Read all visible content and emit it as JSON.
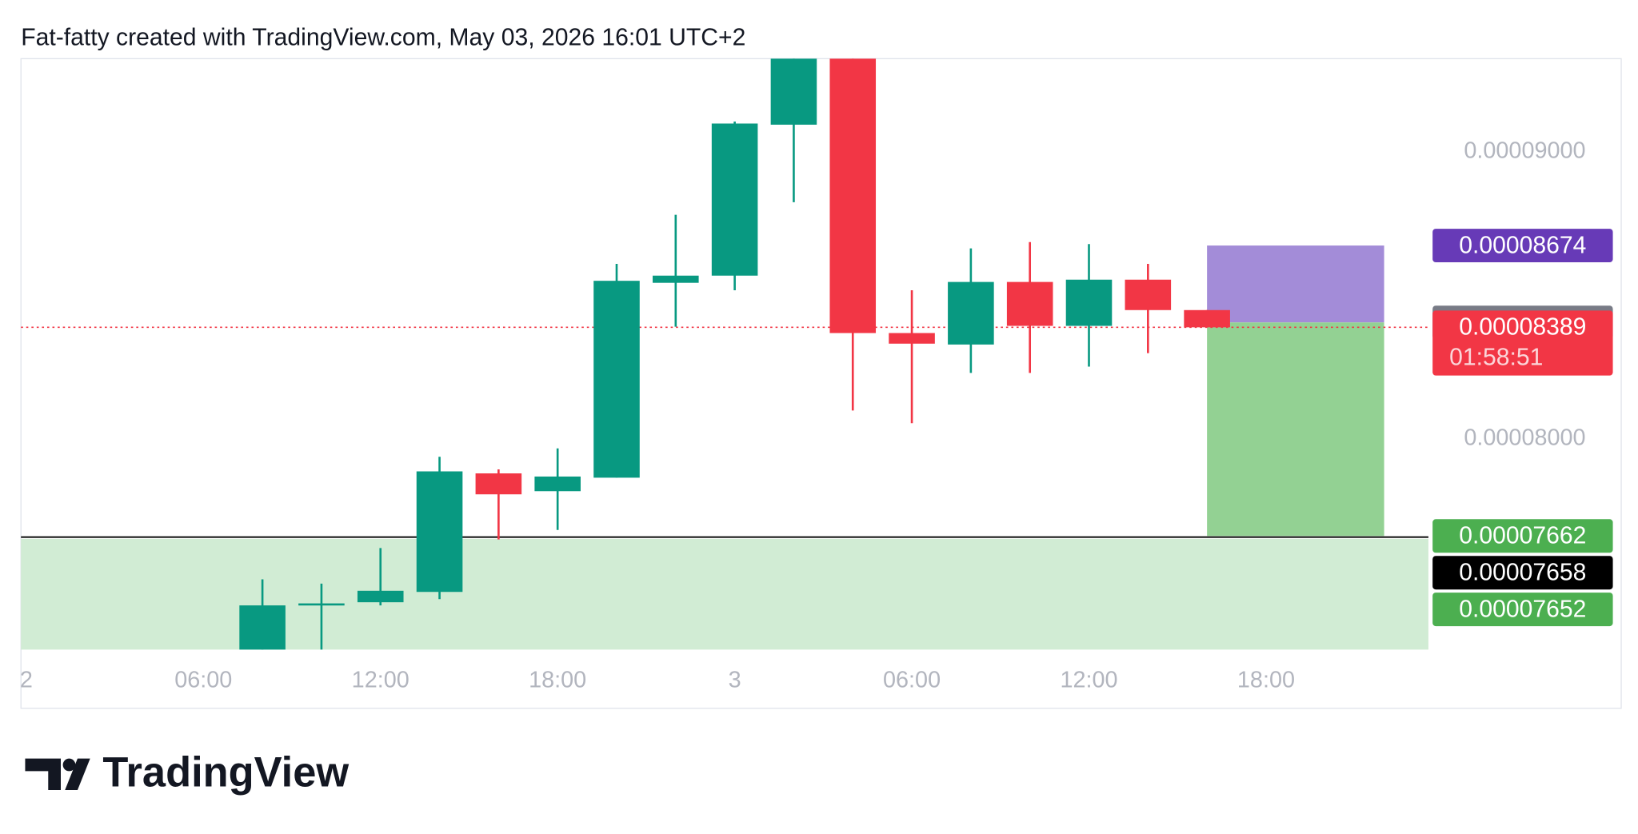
{
  "chart_data": {
    "type": "candlestick",
    "title": "Fat-fatty created with TradingView.com, May 03, 2026 16:01 UTC+2",
    "brand": "TradingView",
    "x": [
      8,
      10,
      12,
      14,
      16,
      18,
      20,
      22,
      24,
      26,
      28,
      30,
      32,
      34,
      36,
      38,
      40
    ],
    "open": [
      7.266e-05,
      7.42e-05,
      7.431e-05,
      7.467e-05,
      7.88e-05,
      7.818e-05,
      7.865e-05,
      8.544e-05,
      8.569e-05,
      9.095e-05,
      9.325e-05,
      8.369e-05,
      8.329e-05,
      8.547e-05,
      8.394e-05,
      8.555e-05,
      8.449e-05
    ],
    "high": [
      7.511e-05,
      7.496e-05,
      7.62e-05,
      7.938e-05,
      7.894e-05,
      7.967e-05,
      8.61e-05,
      8.781e-05,
      9.106e-05,
      9.325e-05,
      9.325e-05,
      8.518e-05,
      8.664e-05,
      8.686e-05,
      8.679e-05,
      8.61e-05,
      8.449e-05
    ],
    "low": [
      7.266e-05,
      7.266e-05,
      7.42e-05,
      7.442e-05,
      7.65e-05,
      7.683e-05,
      7.865e-05,
      8.391e-05,
      8.518e-05,
      8.825e-05,
      8.099e-05,
      8.055e-05,
      8.23e-05,
      8.23e-05,
      8.252e-05,
      8.299e-05,
      8.389e-05
    ],
    "close": [
      7.42e-05,
      7.427e-05,
      7.471e-05,
      7.887e-05,
      7.807e-05,
      7.869e-05,
      8.551e-05,
      8.569e-05,
      9.099e-05,
      9.325e-05,
      8.369e-05,
      8.332e-05,
      8.547e-05,
      8.394e-05,
      8.555e-05,
      8.449e-05,
      8.389e-05
    ],
    "up_color": "#089981",
    "down_color": "#f23645",
    "xlim": [
      -0.18,
      47.5
    ],
    "xticks": [
      {
        "value": 0,
        "label": "2"
      },
      {
        "value": 6,
        "label": "06:00"
      },
      {
        "value": 12,
        "label": "12:00"
      },
      {
        "value": 18,
        "label": "18:00"
      },
      {
        "value": 24,
        "label": "3"
      },
      {
        "value": 30,
        "label": "06:00"
      },
      {
        "value": 36,
        "label": "12:00"
      },
      {
        "value": 42,
        "label": "18:00"
      }
    ],
    "ylim": [
      7.266e-05,
      9.325e-05
    ],
    "yticks": [
      {
        "value": 8e-05,
        "label": "0.00008000"
      },
      {
        "value": 9e-05,
        "label": "0.00009000"
      }
    ],
    "current_price": {
      "value": 8.389e-05,
      "countdown": "01:58:51",
      "color": "#f23645"
    },
    "position": {
      "target": 8.674e-05,
      "entry": 8.406e-05,
      "stop": 7.662e-05,
      "target_color": "#673ab7",
      "entry_color": "#787b86",
      "stop_color": "#4caf50",
      "upper_fill": "#a38cd8",
      "lower_fill": "#93d193"
    },
    "horizontal_line": {
      "value": 7.658e-05,
      "color": "#000000"
    },
    "zone": {
      "top": 7.652e-05,
      "color": "#4caf50",
      "fill": "#d1ecd4"
    }
  }
}
